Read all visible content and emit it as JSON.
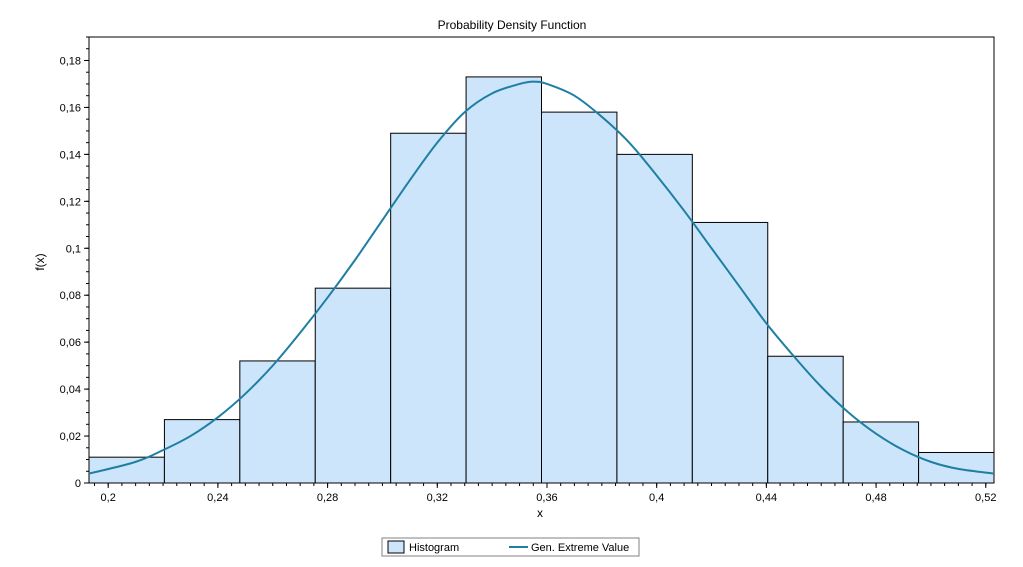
{
  "chart_data": {
    "type": "bar",
    "title": "Probability Density Function",
    "xlabel": "x",
    "ylabel": "f(x)",
    "xlim": [
      0.193,
      0.523
    ],
    "ylim": [
      0,
      0.19
    ],
    "x_ticks": [
      0.2,
      0.24,
      0.28,
      0.32,
      0.36,
      0.4,
      0.44,
      0.48,
      0.52
    ],
    "x_tick_labels": [
      "0,2",
      "0,24",
      "0,28",
      "0,32",
      "0,36",
      "0,4",
      "0,44",
      "0,48",
      "0,52"
    ],
    "y_ticks": [
      0,
      0.02,
      0.04,
      0.06,
      0.08,
      0.1,
      0.12,
      0.14,
      0.16,
      0.18
    ],
    "y_tick_labels": [
      "0",
      "0,02",
      "0,04",
      "0,06",
      "0,08",
      "0,1",
      "0,12",
      "0,14",
      "0,16",
      "0,18"
    ],
    "grid": false,
    "legend_position": "bottom-center",
    "series": [
      {
        "name": "Histogram",
        "kind": "histogram",
        "color": "#cce5fa",
        "edge_color": "#000000",
        "bins": [
          {
            "x0": 0.193,
            "x1": 0.2205,
            "value": 0.011
          },
          {
            "x0": 0.2205,
            "x1": 0.248,
            "value": 0.027
          },
          {
            "x0": 0.248,
            "x1": 0.2755,
            "value": 0.052
          },
          {
            "x0": 0.2755,
            "x1": 0.303,
            "value": 0.083
          },
          {
            "x0": 0.303,
            "x1": 0.3305,
            "value": 0.149
          },
          {
            "x0": 0.3305,
            "x1": 0.358,
            "value": 0.173
          },
          {
            "x0": 0.358,
            "x1": 0.3855,
            "value": 0.158
          },
          {
            "x0": 0.3855,
            "x1": 0.413,
            "value": 0.14
          },
          {
            "x0": 0.413,
            "x1": 0.4405,
            "value": 0.111
          },
          {
            "x0": 0.4405,
            "x1": 0.468,
            "value": 0.054
          },
          {
            "x0": 0.468,
            "x1": 0.4955,
            "value": 0.026
          },
          {
            "x0": 0.4955,
            "x1": 0.523,
            "value": 0.013
          }
        ]
      },
      {
        "name": "Gen. Extreme Value",
        "kind": "line",
        "color": "#1f7fa3",
        "x": [
          0.193,
          0.21,
          0.22,
          0.23,
          0.24,
          0.25,
          0.26,
          0.27,
          0.28,
          0.29,
          0.3,
          0.31,
          0.32,
          0.33,
          0.34,
          0.35,
          0.355,
          0.36,
          0.37,
          0.38,
          0.39,
          0.4,
          0.41,
          0.42,
          0.43,
          0.44,
          0.45,
          0.46,
          0.47,
          0.48,
          0.49,
          0.5,
          0.51,
          0.523
        ],
        "y": [
          0.004,
          0.009,
          0.014,
          0.02,
          0.028,
          0.038,
          0.05,
          0.064,
          0.079,
          0.095,
          0.112,
          0.129,
          0.145,
          0.158,
          0.166,
          0.17,
          0.171,
          0.17,
          0.165,
          0.156,
          0.145,
          0.131,
          0.116,
          0.1,
          0.084,
          0.068,
          0.054,
          0.041,
          0.03,
          0.021,
          0.014,
          0.009,
          0.006,
          0.004
        ]
      }
    ]
  }
}
